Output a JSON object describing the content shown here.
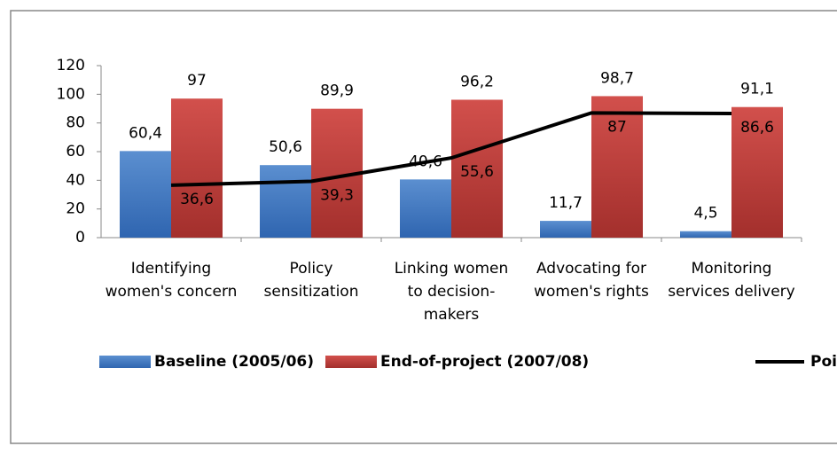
{
  "chart_data": {
    "type": "bar_line",
    "categories": [
      "Identifying women's concern",
      "Policy sensitization",
      "Linking women to decision-makers",
      "Advocating for women's rights",
      "Monitoring services delivery"
    ],
    "series": [
      {
        "name": "Baseline (2005/06)",
        "type": "bar",
        "color": "#4f81bd",
        "values": [
          60.4,
          50.6,
          40.6,
          11.7,
          4.5
        ],
        "value_labels": [
          "60,4",
          "50,6",
          "40,6",
          "11,7",
          "4,5"
        ]
      },
      {
        "name": "End-of-project (2007/08)",
        "type": "bar",
        "color": "#c0504d",
        "values": [
          97,
          89.9,
          96.2,
          98.7,
          91.1
        ],
        "value_labels": [
          "97",
          "89,9",
          "96,2",
          "98,7",
          "91,1"
        ]
      },
      {
        "name": "Point change",
        "type": "line",
        "color": "#000000",
        "values": [
          36.6,
          39.3,
          55.6,
          87,
          86.6
        ],
        "value_labels": [
          "36,6",
          "39,3",
          "55,6",
          "87",
          "86,6"
        ]
      }
    ],
    "ylim": [
      0,
      120
    ],
    "yticks": [
      0,
      20,
      40,
      60,
      80,
      100,
      120
    ],
    "grid": false,
    "legend": "bottom"
  }
}
